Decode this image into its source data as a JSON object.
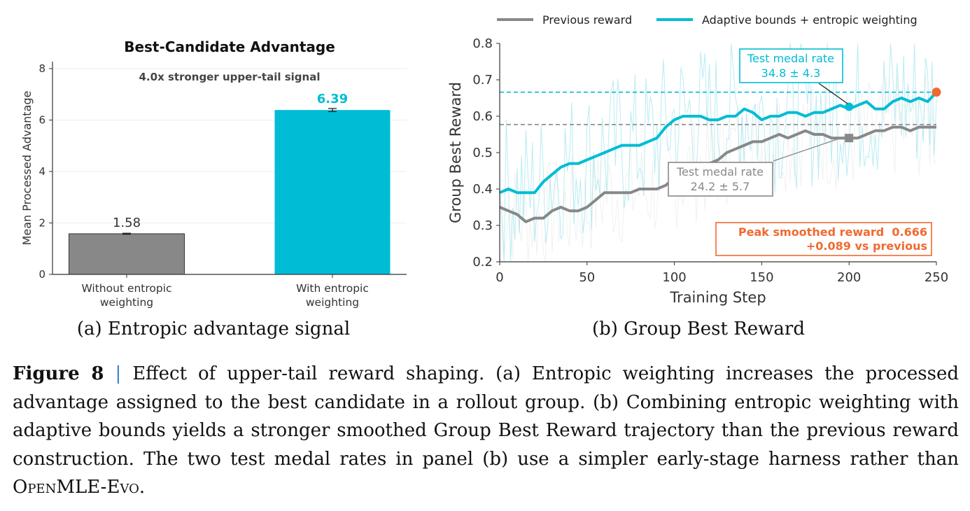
{
  "panel_a": {
    "caption": "(a) Entropic advantage signal"
  },
  "panel_b": {
    "caption": "(b) Group Best Reward",
    "cyan_annotation": {
      "label": "Test medal rate",
      "value": "34.8 ± 4.3"
    },
    "gray_annotation": {
      "label": "Test medal rate",
      "value": "24.2 ± 5.7"
    },
    "peak_box": {
      "line1": "Peak smoothed reward  0.666",
      "line2": "+0.089 vs previous"
    }
  },
  "caption": {
    "label": "Figure 8",
    "separator": "|",
    "text_before": "Effect of upper-tail reward shaping. (a) Entropic weighting increases the processed advantage assigned to the best candidate in a rollout group. (b) Combining entropic weighting with adaptive bounds yields a stronger smoothed Group Best Reward trajectory than the previous reward construction. The two test medal rates in panel (b) use a simpler early-stage harness rather than ",
    "smallcaps_text": "OpenMLE-Evo",
    "text_after": "."
  },
  "colors": {
    "gray": "#888888",
    "cyan": "#00bcd4",
    "orange": "#f06a30",
    "text": "#333333"
  },
  "chart_data": [
    {
      "type": "bar",
      "title": "Best-Candidate Advantage",
      "subtitle": "4.0x stronger upper-tail signal",
      "categories": [
        "Without entropic\nweighting",
        "With entropic\nweighting"
      ],
      "values": [
        1.58,
        6.39
      ],
      "error": [
        0.02,
        0.06
      ],
      "value_labels": [
        "1.58",
        "6.39"
      ],
      "colors": [
        "#888888",
        "#00bcd4"
      ],
      "xlabel": "",
      "ylabel": "Mean Processed Advantage",
      "ylim": [
        0,
        8
      ],
      "yticks": [
        0,
        2,
        4,
        6,
        8
      ],
      "grid": true
    },
    {
      "type": "line",
      "title": "",
      "xlabel": "Training Step",
      "ylabel": "Group Best Reward",
      "xlim": [
        0,
        250
      ],
      "ylim": [
        0.2,
        0.8
      ],
      "xticks": [
        0,
        50,
        100,
        150,
        200,
        250
      ],
      "yticks": [
        0.2,
        0.3,
        0.4,
        0.5,
        0.6,
        0.7,
        0.8
      ],
      "legend": "top",
      "series": [
        {
          "name": "Previous reward",
          "color": "#888888",
          "x": [
            0,
            5,
            10,
            15,
            20,
            25,
            30,
            35,
            40,
            45,
            50,
            55,
            60,
            65,
            70,
            75,
            80,
            85,
            90,
            95,
            100,
            105,
            110,
            115,
            120,
            125,
            130,
            135,
            140,
            145,
            150,
            155,
            160,
            165,
            170,
            175,
            180,
            185,
            190,
            195,
            200,
            205,
            210,
            215,
            220,
            225,
            230,
            235,
            240,
            245,
            250
          ],
          "y": [
            0.35,
            0.34,
            0.33,
            0.31,
            0.32,
            0.32,
            0.34,
            0.35,
            0.34,
            0.34,
            0.35,
            0.37,
            0.39,
            0.39,
            0.39,
            0.39,
            0.4,
            0.4,
            0.4,
            0.41,
            0.43,
            0.44,
            0.45,
            0.46,
            0.47,
            0.48,
            0.5,
            0.51,
            0.52,
            0.53,
            0.53,
            0.54,
            0.55,
            0.54,
            0.55,
            0.56,
            0.55,
            0.55,
            0.54,
            0.54,
            0.54,
            0.54,
            0.55,
            0.56,
            0.56,
            0.57,
            0.57,
            0.56,
            0.57,
            0.57,
            0.57
          ],
          "ref_line": 0.577,
          "marker": {
            "x": 200,
            "y": 0.54
          }
        },
        {
          "name": "Adaptive bounds + entropic weighting",
          "color": "#00bcd4",
          "x": [
            0,
            5,
            10,
            15,
            20,
            25,
            30,
            35,
            40,
            45,
            50,
            55,
            60,
            65,
            70,
            75,
            80,
            85,
            90,
            95,
            100,
            105,
            110,
            115,
            120,
            125,
            130,
            135,
            140,
            145,
            150,
            155,
            160,
            165,
            170,
            175,
            180,
            185,
            190,
            195,
            200,
            205,
            210,
            215,
            220,
            225,
            230,
            235,
            240,
            245,
            250
          ],
          "y": [
            0.39,
            0.4,
            0.39,
            0.39,
            0.39,
            0.42,
            0.44,
            0.46,
            0.47,
            0.47,
            0.48,
            0.49,
            0.5,
            0.51,
            0.52,
            0.52,
            0.52,
            0.53,
            0.54,
            0.57,
            0.59,
            0.6,
            0.6,
            0.6,
            0.59,
            0.59,
            0.6,
            0.6,
            0.62,
            0.61,
            0.59,
            0.6,
            0.6,
            0.61,
            0.61,
            0.6,
            0.61,
            0.61,
            0.62,
            0.63,
            0.62,
            0.63,
            0.64,
            0.62,
            0.62,
            0.64,
            0.65,
            0.64,
            0.65,
            0.64,
            0.666
          ],
          "ref_line": 0.666,
          "marker": {
            "x": 200,
            "y": 0.626
          }
        }
      ],
      "peak_marker": {
        "x": 250,
        "y": 0.666
      }
    }
  ]
}
